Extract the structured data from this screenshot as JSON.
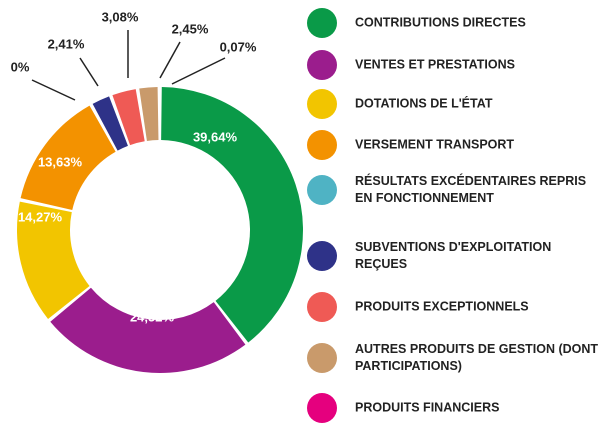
{
  "chart_data": {
    "type": "donut",
    "categories": [
      "CONTRIBUTIONS DIRECTES",
      "VENTES ET PRESTATIONS",
      "DOTATIONS DE L'ÉTAT",
      "VERSEMENT TRANSPORT",
      "RÉSULTATS EXCÉDENTAIRES REPRIS EN FONCTIONNEMENT",
      "SUBVENTIONS D'EXPLOITATION REÇUES",
      "PRODUITS EXCEPTIONNELS",
      "AUTRES PRODUITS DE GESTION (DONT PARTICIPATIONS)",
      "PRODUITS FINANCIERS"
    ],
    "values": [
      39.64,
      24.52,
      14.27,
      13.63,
      0,
      2.41,
      3.08,
      2.45,
      0.07
    ],
    "value_labels": [
      "39,64%",
      "24,52%",
      "14,27%",
      "13,63%",
      "0%",
      "2,41%",
      "3,08%",
      "2,45%",
      "0,07%"
    ],
    "colors": [
      "#0a9a48",
      "#9b1d8d",
      "#f2c500",
      "#f39200",
      "#4fb3c4",
      "#2e3288",
      "#ef5a55",
      "#c99a6b",
      "#e5007e"
    ],
    "legend": "right"
  }
}
